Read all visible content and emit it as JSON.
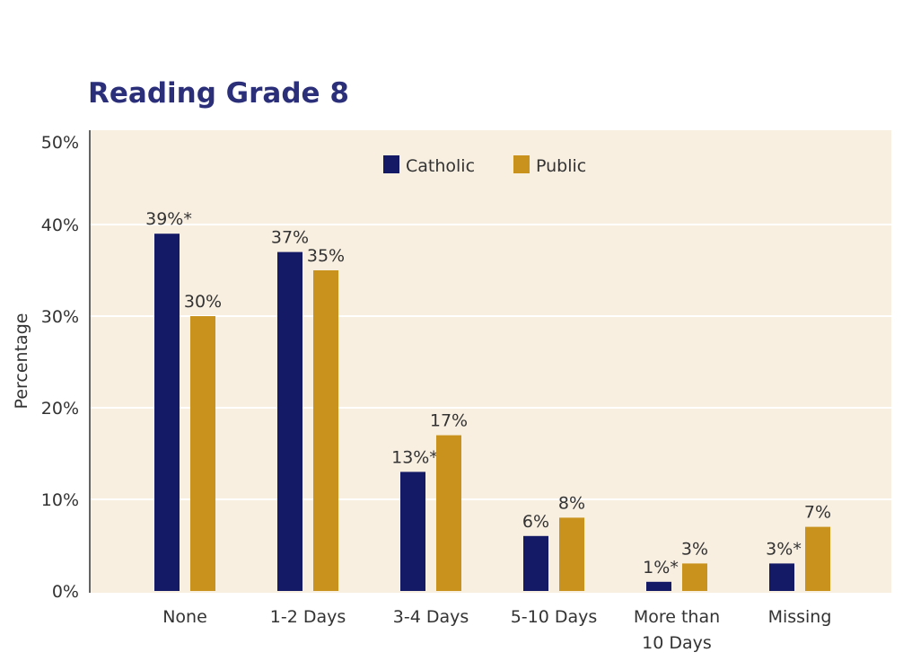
{
  "chart_data": {
    "type": "bar",
    "title": "Reading Grade 8",
    "xlabel": "",
    "ylabel": "Percentage",
    "ylim": [
      0,
      50
    ],
    "yticks": [
      "0%",
      "10%",
      "20%",
      "30%",
      "40%",
      "50%"
    ],
    "grid": true,
    "legend": "top-center",
    "categories": [
      [
        "None"
      ],
      [
        "1-2 Days"
      ],
      [
        "3-4 Days"
      ],
      [
        "5-10 Days"
      ],
      [
        "More than",
        "10 Days"
      ],
      [
        "Missing"
      ]
    ],
    "series": [
      {
        "name": "Catholic",
        "color": "#141a66",
        "values": [
          39,
          37,
          13,
          6,
          1,
          3
        ],
        "labels": [
          "39%*",
          "37%",
          "13%*",
          "6%",
          "1%*",
          "3%*"
        ]
      },
      {
        "name": "Public",
        "color": "#c9921c",
        "values": [
          30,
          35,
          17,
          8,
          3,
          7
        ],
        "labels": [
          "30%",
          "35%",
          "17%",
          "8%",
          "3%",
          "7%"
        ]
      }
    ],
    "background": "#f8efe1"
  }
}
